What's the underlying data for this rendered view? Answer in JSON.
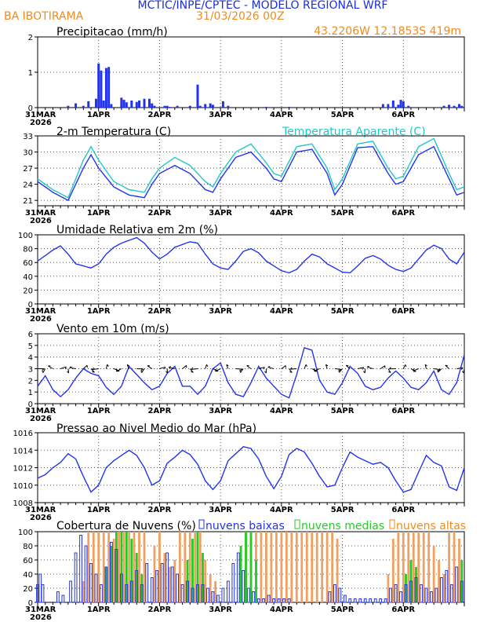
{
  "header": {
    "title": "MCTIC/INPE/CPTEC - MODELO REGIONAL WRF",
    "station": "BA IBOTIRAMA",
    "run": "31/03/2026 00Z",
    "coords": "43.2206W 12.1853S 419m"
  },
  "colors": {
    "title": "#1a2ee0",
    "orange": "#f08a1c",
    "blue": "#2233ee",
    "cyan": "#22c8c8",
    "green": "#22cc22",
    "orange_bar": "#f0a060"
  },
  "x_axis": {
    "start_label": "31MAR",
    "start_year": "2026",
    "day_labels": [
      "1APR",
      "2APR",
      "3APR",
      "4APR",
      "5APR",
      "6APR"
    ],
    "hours_total": 168,
    "step_hours": 3
  },
  "chart_data": [
    {
      "type": "bar",
      "title": "Precipitacao (mm/h)",
      "ylim": [
        0,
        2
      ],
      "yticks": [
        0,
        1,
        2
      ],
      "x_hours": [
        12,
        15,
        18,
        20,
        23,
        24,
        25,
        26,
        27,
        28,
        29,
        33,
        34,
        35,
        37,
        39,
        40,
        42,
        44,
        45,
        46,
        50,
        51,
        52,
        55,
        60,
        63,
        64,
        66,
        68,
        69,
        73,
        75,
        90,
        99,
        136,
        138,
        140,
        142,
        143,
        144,
        146,
        160,
        162,
        164,
        166,
        167
      ],
      "values": [
        0.05,
        0.12,
        0.05,
        0.18,
        0.25,
        1.25,
        1.05,
        0.2,
        1.12,
        1.15,
        0.1,
        0.28,
        0.22,
        0.15,
        0.2,
        0.16,
        0.2,
        0.25,
        0.25,
        0.12,
        0.05,
        0.05,
        0.05,
        0.02,
        0.05,
        0.05,
        0.65,
        0.05,
        0.1,
        0.12,
        0.08,
        0.18,
        0.05,
        0.02,
        0.02,
        0.1,
        0.1,
        0.2,
        0.08,
        0.22,
        0.18,
        0.05,
        0.05,
        0.08,
        0.05,
        0.1,
        0.05
      ]
    },
    {
      "type": "line",
      "title": "2-m Temperatura (C)",
      "legend_right": "Temperatura Aparente (C)",
      "ylim": [
        20,
        33
      ],
      "yticks": [
        21,
        24,
        27,
        30,
        33
      ],
      "x_key": [
        0,
        6,
        12,
        18,
        21,
        24,
        30,
        36,
        42,
        45,
        48,
        54,
        60,
        66,
        69,
        72,
        78,
        84,
        90,
        93,
        96,
        102,
        108,
        114,
        117,
        120,
        126,
        132,
        138,
        141,
        144,
        150,
        156,
        162,
        165,
        168
      ],
      "series": [
        {
          "name": "Temperatura",
          "color": "blue",
          "values": [
            24.5,
            22.5,
            21,
            27,
            29.5,
            27,
            23.5,
            22,
            21.5,
            24,
            26,
            27.5,
            26,
            23,
            22.5,
            25,
            29,
            30,
            27,
            25,
            24.5,
            30,
            30.5,
            26,
            22,
            24,
            30.8,
            31,
            26,
            24,
            24.5,
            29.5,
            31,
            25,
            22,
            22.5
          ]
        },
        {
          "name": "Temperatura Aparente",
          "color": "cyan",
          "values": [
            25,
            23,
            21.5,
            28.5,
            31,
            28.5,
            24.5,
            23,
            22.5,
            25,
            27,
            29,
            27.5,
            24.5,
            23.5,
            26,
            30,
            31.5,
            28,
            26,
            25.5,
            31,
            31.5,
            27,
            23,
            25,
            31.5,
            32,
            27,
            25,
            25.5,
            31,
            32.5,
            26,
            23,
            23.5
          ]
        }
      ]
    },
    {
      "type": "line",
      "title": "Umidade Relativa em 2m (%)",
      "ylim": [
        0,
        100
      ],
      "yticks": [
        0,
        20,
        40,
        60,
        80,
        100
      ],
      "x_key": [
        0,
        3,
        6,
        9,
        12,
        15,
        18,
        21,
        24,
        27,
        30,
        33,
        36,
        39,
        42,
        45,
        48,
        51,
        54,
        57,
        60,
        63,
        66,
        69,
        72,
        75,
        78,
        81,
        84,
        87,
        90,
        93,
        96,
        99,
        102,
        105,
        108,
        111,
        114,
        117,
        120,
        123,
        126,
        129,
        132,
        135,
        138,
        141,
        144,
        147,
        150,
        153,
        156,
        159,
        162,
        165,
        168
      ],
      "series": [
        {
          "name": "Umidade Relativa",
          "color": "blue",
          "values": [
            62,
            70,
            78,
            84,
            72,
            58,
            55,
            52,
            58,
            72,
            82,
            88,
            92,
            96,
            88,
            75,
            65,
            72,
            82,
            86,
            90,
            88,
            72,
            58,
            52,
            50,
            62,
            76,
            80,
            74,
            62,
            55,
            48,
            45,
            50,
            62,
            72,
            68,
            58,
            52,
            46,
            45,
            55,
            66,
            70,
            65,
            56,
            50,
            47,
            52,
            65,
            78,
            85,
            80,
            65,
            58,
            75
          ]
        }
      ]
    },
    {
      "type": "line",
      "title": "Vento em 10m (m/s)",
      "ylim": [
        0,
        6
      ],
      "yticks": [
        0,
        1,
        2,
        3,
        4,
        5,
        6
      ],
      "x_key": [
        0,
        3,
        6,
        9,
        12,
        15,
        18,
        21,
        24,
        27,
        30,
        33,
        36,
        39,
        42,
        45,
        48,
        51,
        54,
        57,
        60,
        63,
        66,
        69,
        72,
        75,
        78,
        81,
        84,
        87,
        90,
        93,
        96,
        99,
        102,
        105,
        108,
        111,
        114,
        117,
        120,
        123,
        126,
        129,
        132,
        135,
        138,
        141,
        144,
        147,
        150,
        153,
        156,
        159,
        162,
        165,
        168
      ],
      "series": [
        {
          "name": "Vento",
          "color": "blue",
          "values": [
            1.5,
            2.4,
            1.2,
            0.6,
            1.2,
            2.2,
            3.0,
            2.6,
            2.4,
            1.4,
            0.8,
            1.5,
            3.2,
            2.5,
            1.8,
            1.2,
            1.5,
            2.6,
            3.2,
            1.5,
            1.5,
            0.8,
            1.5,
            3.0,
            3.5,
            1.8,
            0.8,
            0.6,
            1.8,
            3.2,
            2.2,
            1.5,
            0.8,
            0.5,
            2.5,
            4.8,
            4.6,
            2.0,
            1.0,
            0.8,
            1.8,
            3.2,
            2.6,
            1.5,
            1.2,
            1.4,
            2.2,
            2.8,
            2.2,
            1.4,
            1.2,
            1.8,
            2.8,
            1.2,
            0.8,
            1.8,
            4.2
          ]
        }
      ]
    },
    {
      "type": "line",
      "title": "Pressao ao Nivel Medio do Mar (hPa)",
      "ylim": [
        1008,
        1016
      ],
      "yticks": [
        1008,
        1010,
        1012,
        1014,
        1016
      ],
      "x_key": [
        0,
        3,
        6,
        9,
        12,
        15,
        18,
        21,
        24,
        27,
        30,
        33,
        36,
        39,
        42,
        45,
        48,
        51,
        54,
        57,
        60,
        63,
        66,
        69,
        72,
        75,
        78,
        81,
        84,
        87,
        90,
        93,
        96,
        99,
        102,
        105,
        108,
        111,
        114,
        117,
        120,
        123,
        126,
        129,
        132,
        135,
        138,
        141,
        144,
        147,
        150,
        153,
        156,
        159,
        162,
        165,
        168
      ],
      "series": [
        {
          "name": "Pressao",
          "color": "blue",
          "values": [
            1010.8,
            1011.2,
            1012.0,
            1012.6,
            1013.6,
            1013.0,
            1011.0,
            1009.2,
            1010.0,
            1012.0,
            1012.8,
            1013.4,
            1014.0,
            1013.4,
            1012.0,
            1010.0,
            1010.5,
            1012.5,
            1013.2,
            1014.0,
            1013.5,
            1012.4,
            1010.5,
            1009.5,
            1010.5,
            1012.8,
            1013.6,
            1014.4,
            1014.2,
            1013.0,
            1011.0,
            1009.6,
            1011.0,
            1013.5,
            1014.2,
            1013.8,
            1012.5,
            1011.0,
            1009.8,
            1010.0,
            1012.0,
            1013.8,
            1013.2,
            1012.8,
            1012.4,
            1012.6,
            1012.0,
            1010.5,
            1009.2,
            1009.5,
            1011.5,
            1013.4,
            1012.6,
            1012.2,
            1009.8,
            1009.4,
            1012.0
          ]
        }
      ]
    },
    {
      "type": "bar",
      "title": "Cobertura de Nuvens (%)",
      "ylim": [
        0,
        100
      ],
      "yticks": [
        0,
        20,
        40,
        60,
        80,
        100
      ],
      "legend": [
        "nuvens baixas",
        "nuvens medias",
        "nuvens altas"
      ],
      "series": [
        {
          "name": "nuvens altas",
          "color": "orange_bar",
          "x_hours": [
            18,
            20,
            22,
            24,
            26,
            28,
            30,
            32,
            34,
            36,
            38,
            40,
            42,
            46,
            48,
            50,
            52,
            54,
            56,
            58,
            60,
            62,
            64,
            66,
            68,
            70,
            82,
            84,
            86,
            88,
            90,
            92,
            94,
            96,
            98,
            100,
            102,
            104,
            106,
            108,
            110,
            112,
            114,
            116,
            118,
            138,
            140,
            142,
            144,
            146,
            148,
            150,
            152,
            154,
            156,
            158,
            160,
            162,
            164,
            166
          ],
          "values": [
            30,
            100,
            100,
            100,
            100,
            100,
            90,
            100,
            100,
            100,
            100,
            100,
            100,
            80,
            100,
            70,
            50,
            60,
            100,
            100,
            100,
            100,
            100,
            60,
            40,
            30,
            100,
            100,
            100,
            100,
            100,
            100,
            100,
            100,
            100,
            100,
            100,
            100,
            100,
            100,
            100,
            100,
            100,
            100,
            90,
            40,
            90,
            100,
            100,
            100,
            100,
            100,
            100,
            100,
            80,
            60,
            40,
            100,
            100,
            90
          ]
        },
        {
          "name": "nuvens medias",
          "color": "green",
          "x_hours": [
            27,
            29,
            31,
            33,
            35,
            37,
            39,
            41,
            59,
            61,
            63,
            65,
            80,
            82,
            84,
            86,
            145,
            147,
            149,
            167
          ],
          "values": [
            50,
            80,
            100,
            100,
            100,
            90,
            70,
            40,
            60,
            90,
            100,
            70,
            80,
            100,
            100,
            60,
            40,
            60,
            50,
            60
          ]
        },
        {
          "name": "nuvens baixas",
          "color": "blue",
          "x_hours": [
            0,
            1,
            2,
            8,
            10,
            13,
            15,
            17,
            19,
            21,
            23,
            25,
            27,
            29,
            31,
            33,
            35,
            37,
            39,
            41,
            43,
            45,
            47,
            49,
            51,
            53,
            55,
            57,
            59,
            61,
            63,
            65,
            67,
            69,
            71,
            73,
            75,
            77,
            79,
            81,
            83,
            85,
            87,
            89,
            91,
            93,
            95,
            97,
            99,
            115,
            117,
            119,
            121,
            123,
            125,
            127,
            129,
            131,
            133,
            135,
            137,
            139,
            141,
            143,
            145,
            147,
            149,
            151,
            153,
            155,
            157,
            159,
            161,
            163,
            165,
            167
          ],
          "values": [
            25,
            40,
            25,
            15,
            10,
            30,
            70,
            95,
            80,
            55,
            40,
            25,
            50,
            85,
            75,
            40,
            25,
            30,
            45,
            25,
            55,
            35,
            45,
            55,
            70,
            50,
            40,
            25,
            30,
            20,
            25,
            25,
            20,
            15,
            10,
            20,
            30,
            55,
            70,
            45,
            20,
            15,
            5,
            5,
            10,
            5,
            5,
            5,
            5,
            15,
            25,
            20,
            10,
            5,
            5,
            5,
            5,
            5,
            5,
            5,
            5,
            20,
            25,
            15,
            25,
            30,
            35,
            25,
            20,
            15,
            20,
            35,
            45,
            25,
            50,
            30
          ]
        }
      ]
    }
  ]
}
